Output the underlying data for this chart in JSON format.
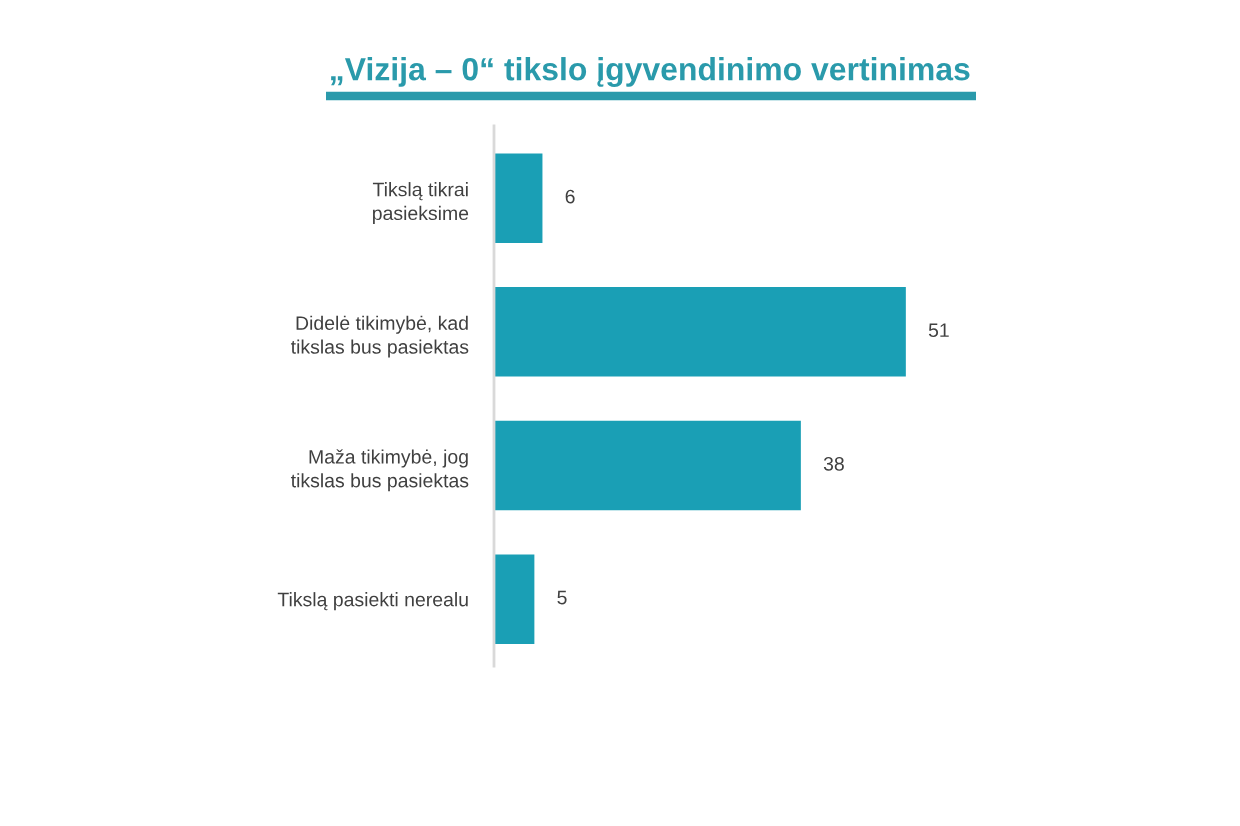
{
  "chart_data": {
    "type": "bar",
    "orientation": "horizontal",
    "title": "„Vizija – 0“ tikslo įgyvendinimo vertinimas",
    "categories": [
      "Tikslą tikrai\npasieksime",
      "Didelė tikimybė, kad\ntikslas bus pasiektas",
      "Maža tikimybė, jog\ntikslas bus pasiektas",
      "Tikslą pasiekti nerealu"
    ],
    "values": [
      6,
      51,
      38,
      5
    ],
    "color": "#1a9fb5",
    "data_labels": true,
    "tick_labels": "y"
  }
}
